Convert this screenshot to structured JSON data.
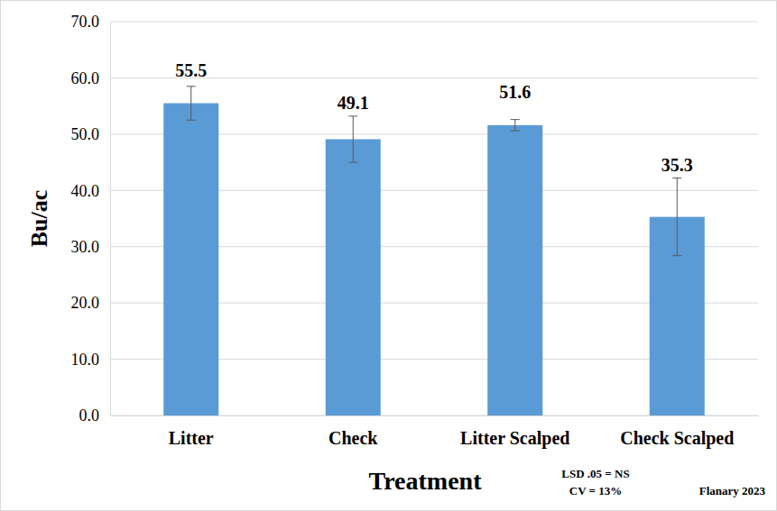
{
  "chart_data": {
    "type": "bar",
    "categories": [
      "Litter",
      "Check",
      "Litter Scalped",
      "Check Scalped"
    ],
    "values": [
      55.5,
      49.1,
      51.6,
      35.3
    ],
    "errors": [
      3.0,
      4.1,
      1.0,
      6.9
    ],
    "color": "#5b9bd5",
    "x_label": "Treatment",
    "y_label": "Bu/ac",
    "annotations": [
      "LSD .05 = NS",
      "CV = 13%",
      "Flanary 2023"
    ],
    "ylim": [
      0,
      70
    ],
    "yticks": [
      {
        "value": 0,
        "label": "0.0"
      },
      {
        "value": 10,
        "label": "10.0"
      },
      {
        "value": 20,
        "label": "20.0"
      },
      {
        "value": 30,
        "label": "30.0"
      },
      {
        "value": 40,
        "label": "40.0"
      },
      {
        "value": 50,
        "label": "50.0"
      },
      {
        "value": 60,
        "label": "60.0"
      },
      {
        "value": 70,
        "label": "70.0"
      }
    ],
    "grid": true,
    "data_labels": true
  }
}
